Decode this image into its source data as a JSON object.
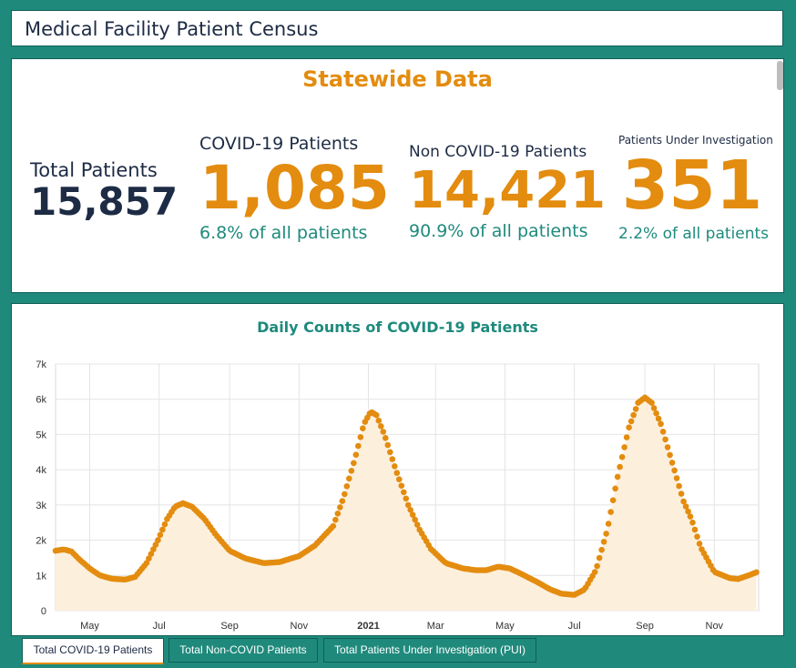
{
  "page_title": "Medical Facility Patient Census",
  "stats": {
    "header": "Statewide Data",
    "total": {
      "label": "Total Patients",
      "value": "15,857"
    },
    "covid": {
      "label": "COVID-19 Patients",
      "value": "1,085",
      "pct": "6.8% of all patients"
    },
    "noncovid": {
      "label": "Non COVID-19 Patients",
      "value": "14,421",
      "pct": "90.9% of all patients"
    },
    "pui": {
      "label": "Patients Under Investigation",
      "value": "351",
      "pct": "2.2% of all patients"
    }
  },
  "tabs": [
    "Total COVID-19 Patients",
    "Total Non-COVID Patients",
    "Total Patients Under Investigation (PUI)"
  ],
  "colors": {
    "accent": "#e38c0f",
    "teal": "#1e8a7d",
    "navy": "#1d2b44",
    "fill": "#fcefdc"
  },
  "chart_data": {
    "type": "line",
    "title": "Daily Counts of COVID-19 Patients",
    "xlabel": "",
    "ylabel": "",
    "ylim": [
      0,
      7000
    ],
    "y_ticks": [
      "0",
      "1k",
      "2k",
      "3k",
      "4k",
      "5k",
      "6k",
      "7k"
    ],
    "x_ticks": [
      "May",
      "Jul",
      "Sep",
      "Nov",
      "2021",
      "Mar",
      "May",
      "Jul",
      "Sep",
      "Nov"
    ],
    "x_tick_dates": [
      "2020-05-01",
      "2020-07-01",
      "2020-09-01",
      "2020-11-01",
      "2021-01-01",
      "2021-03-01",
      "2021-05-01",
      "2021-07-01",
      "2021-09-01",
      "2021-11-01"
    ],
    "grid": true,
    "series": [
      {
        "points": [
          [
            "2020-04-01",
            1700
          ],
          [
            "2020-04-08",
            1740
          ],
          [
            "2020-04-15",
            1680
          ],
          [
            "2020-04-22",
            1450
          ],
          [
            "2020-05-01",
            1200
          ],
          [
            "2020-05-10",
            1000
          ],
          [
            "2020-05-20",
            910
          ],
          [
            "2020-06-01",
            880
          ],
          [
            "2020-06-10",
            960
          ],
          [
            "2020-06-20",
            1350
          ],
          [
            "2020-06-30",
            2000
          ],
          [
            "2020-07-08",
            2600
          ],
          [
            "2020-07-15",
            2950
          ],
          [
            "2020-07-22",
            3050
          ],
          [
            "2020-07-30",
            2950
          ],
          [
            "2020-08-10",
            2600
          ],
          [
            "2020-08-20",
            2150
          ],
          [
            "2020-09-01",
            1700
          ],
          [
            "2020-09-15",
            1480
          ],
          [
            "2020-10-01",
            1350
          ],
          [
            "2020-10-15",
            1380
          ],
          [
            "2020-11-01",
            1550
          ],
          [
            "2020-11-15",
            1850
          ],
          [
            "2020-12-01",
            2400
          ],
          [
            "2020-12-10",
            3200
          ],
          [
            "2020-12-20",
            4300
          ],
          [
            "2020-12-28",
            5300
          ],
          [
            "2021-01-03",
            5650
          ],
          [
            "2021-01-08",
            5550
          ],
          [
            "2021-01-15",
            5000
          ],
          [
            "2021-01-25",
            4000
          ],
          [
            "2021-02-05",
            3000
          ],
          [
            "2021-02-15",
            2300
          ],
          [
            "2021-02-25",
            1750
          ],
          [
            "2021-03-10",
            1350
          ],
          [
            "2021-03-25",
            1200
          ],
          [
            "2021-04-05",
            1150
          ],
          [
            "2021-04-15",
            1150
          ],
          [
            "2021-04-25",
            1250
          ],
          [
            "2021-05-05",
            1200
          ],
          [
            "2021-05-15",
            1050
          ],
          [
            "2021-05-30",
            800
          ],
          [
            "2021-06-10",
            600
          ],
          [
            "2021-06-20",
            480
          ],
          [
            "2021-07-01",
            450
          ],
          [
            "2021-07-10",
            600
          ],
          [
            "2021-07-20",
            1150
          ],
          [
            "2021-07-30",
            2300
          ],
          [
            "2021-08-08",
            3800
          ],
          [
            "2021-08-18",
            5200
          ],
          [
            "2021-08-26",
            5900
          ],
          [
            "2021-09-01",
            6050
          ],
          [
            "2021-09-07",
            5900
          ],
          [
            "2021-09-15",
            5300
          ],
          [
            "2021-09-25",
            4200
          ],
          [
            "2021-10-05",
            3100
          ],
          [
            "2021-10-12",
            2600
          ],
          [
            "2021-10-20",
            1800
          ],
          [
            "2021-11-01",
            1100
          ],
          [
            "2021-11-15",
            920
          ],
          [
            "2021-11-22",
            900
          ],
          [
            "2021-12-01",
            1000
          ],
          [
            "2021-12-08",
            1090
          ]
        ]
      }
    ]
  }
}
